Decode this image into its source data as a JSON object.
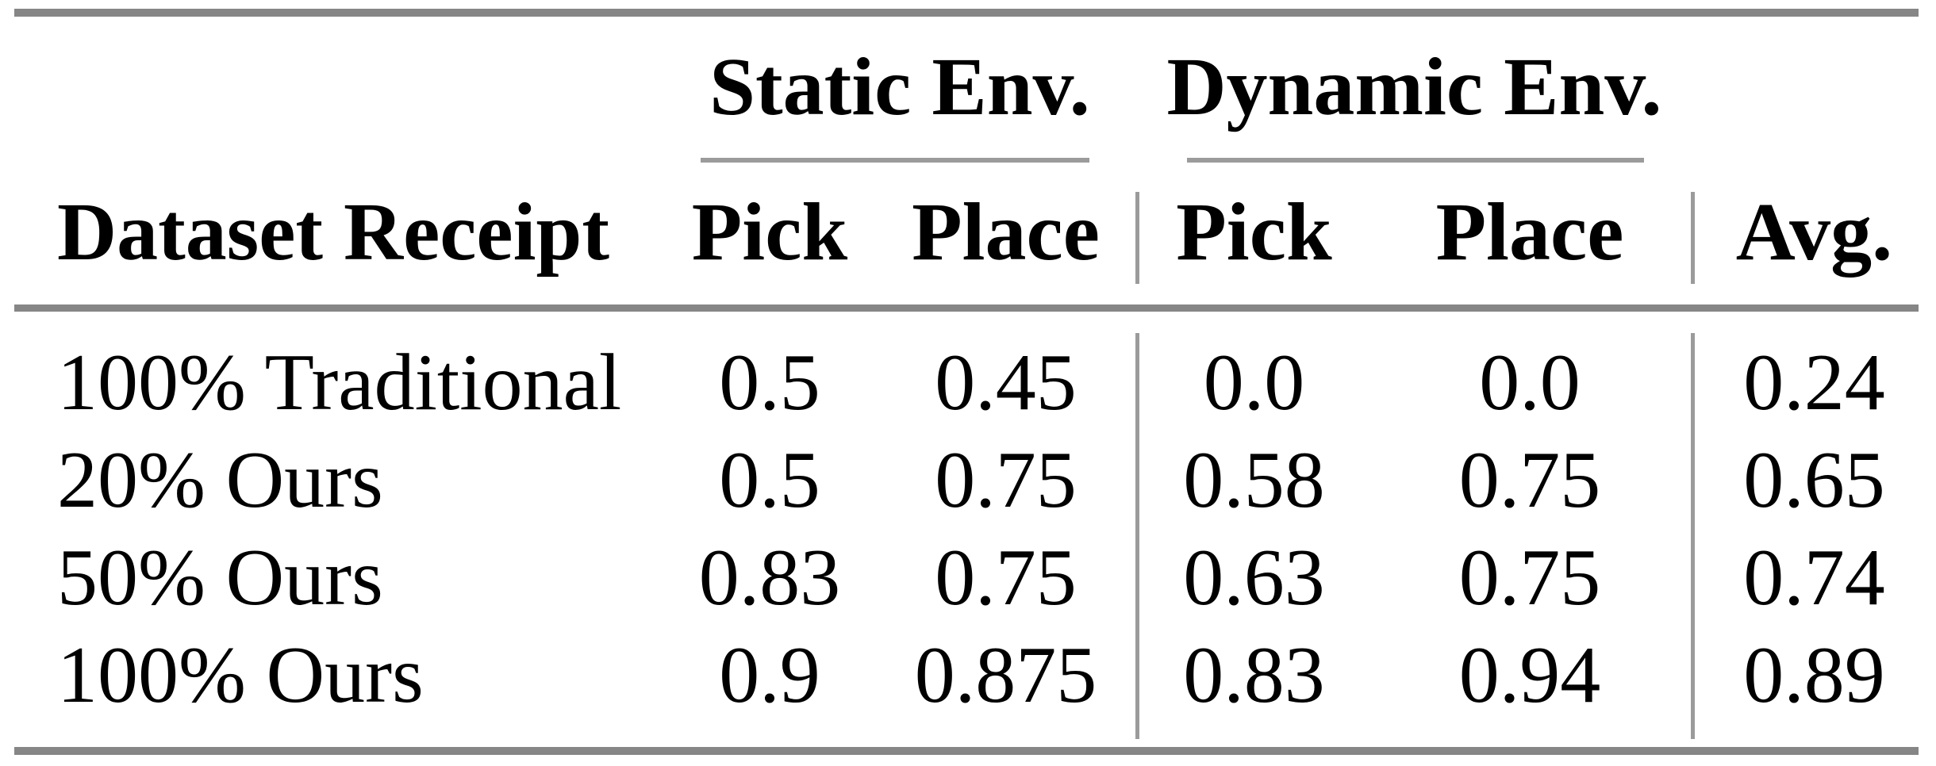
{
  "page": {
    "background_color": "#ffffff",
    "text_color": "#000000",
    "rule_heavy_color": "#868686",
    "rule_light_color": "#9b9b9b"
  },
  "table": {
    "group_headers": {
      "static": "Static Env.",
      "dynamic": "Dynamic Env."
    },
    "column_headers": {
      "row_label": "Dataset Receipt",
      "static_pick": "Pick",
      "static_place": "Place",
      "dynamic_pick": "Pick",
      "dynamic_place": "Place",
      "avg": "Avg."
    },
    "rows": [
      {
        "label": "100% Traditional",
        "values": [
          "0.5",
          "0.45",
          "0.0",
          "0.0",
          "0.24"
        ]
      },
      {
        "label": "20% Ours",
        "values": [
          "0.5",
          "0.75",
          "0.58",
          "0.75",
          "0.65"
        ]
      },
      {
        "label": "50% Ours",
        "values": [
          "0.83",
          "0.75",
          "0.63",
          "0.75",
          "0.74"
        ]
      },
      {
        "label": "100% Ours",
        "values": [
          "0.9",
          "0.875",
          "0.83",
          "0.94",
          "0.89"
        ]
      }
    ]
  },
  "chart_data": {
    "type": "table",
    "columns": [
      "Dataset Receipt",
      "Static Env. Pick",
      "Static Env. Place",
      "Dynamic Env. Pick",
      "Dynamic Env. Place",
      "Avg."
    ],
    "rows": [
      [
        "100% Traditional",
        0.5,
        0.45,
        0.0,
        0.0,
        0.24
      ],
      [
        "20% Ours",
        0.5,
        0.75,
        0.58,
        0.75,
        0.65
      ],
      [
        "50% Ours",
        0.83,
        0.75,
        0.63,
        0.75,
        0.74
      ],
      [
        "100% Ours",
        0.9,
        0.875,
        0.83,
        0.94,
        0.89
      ]
    ]
  }
}
